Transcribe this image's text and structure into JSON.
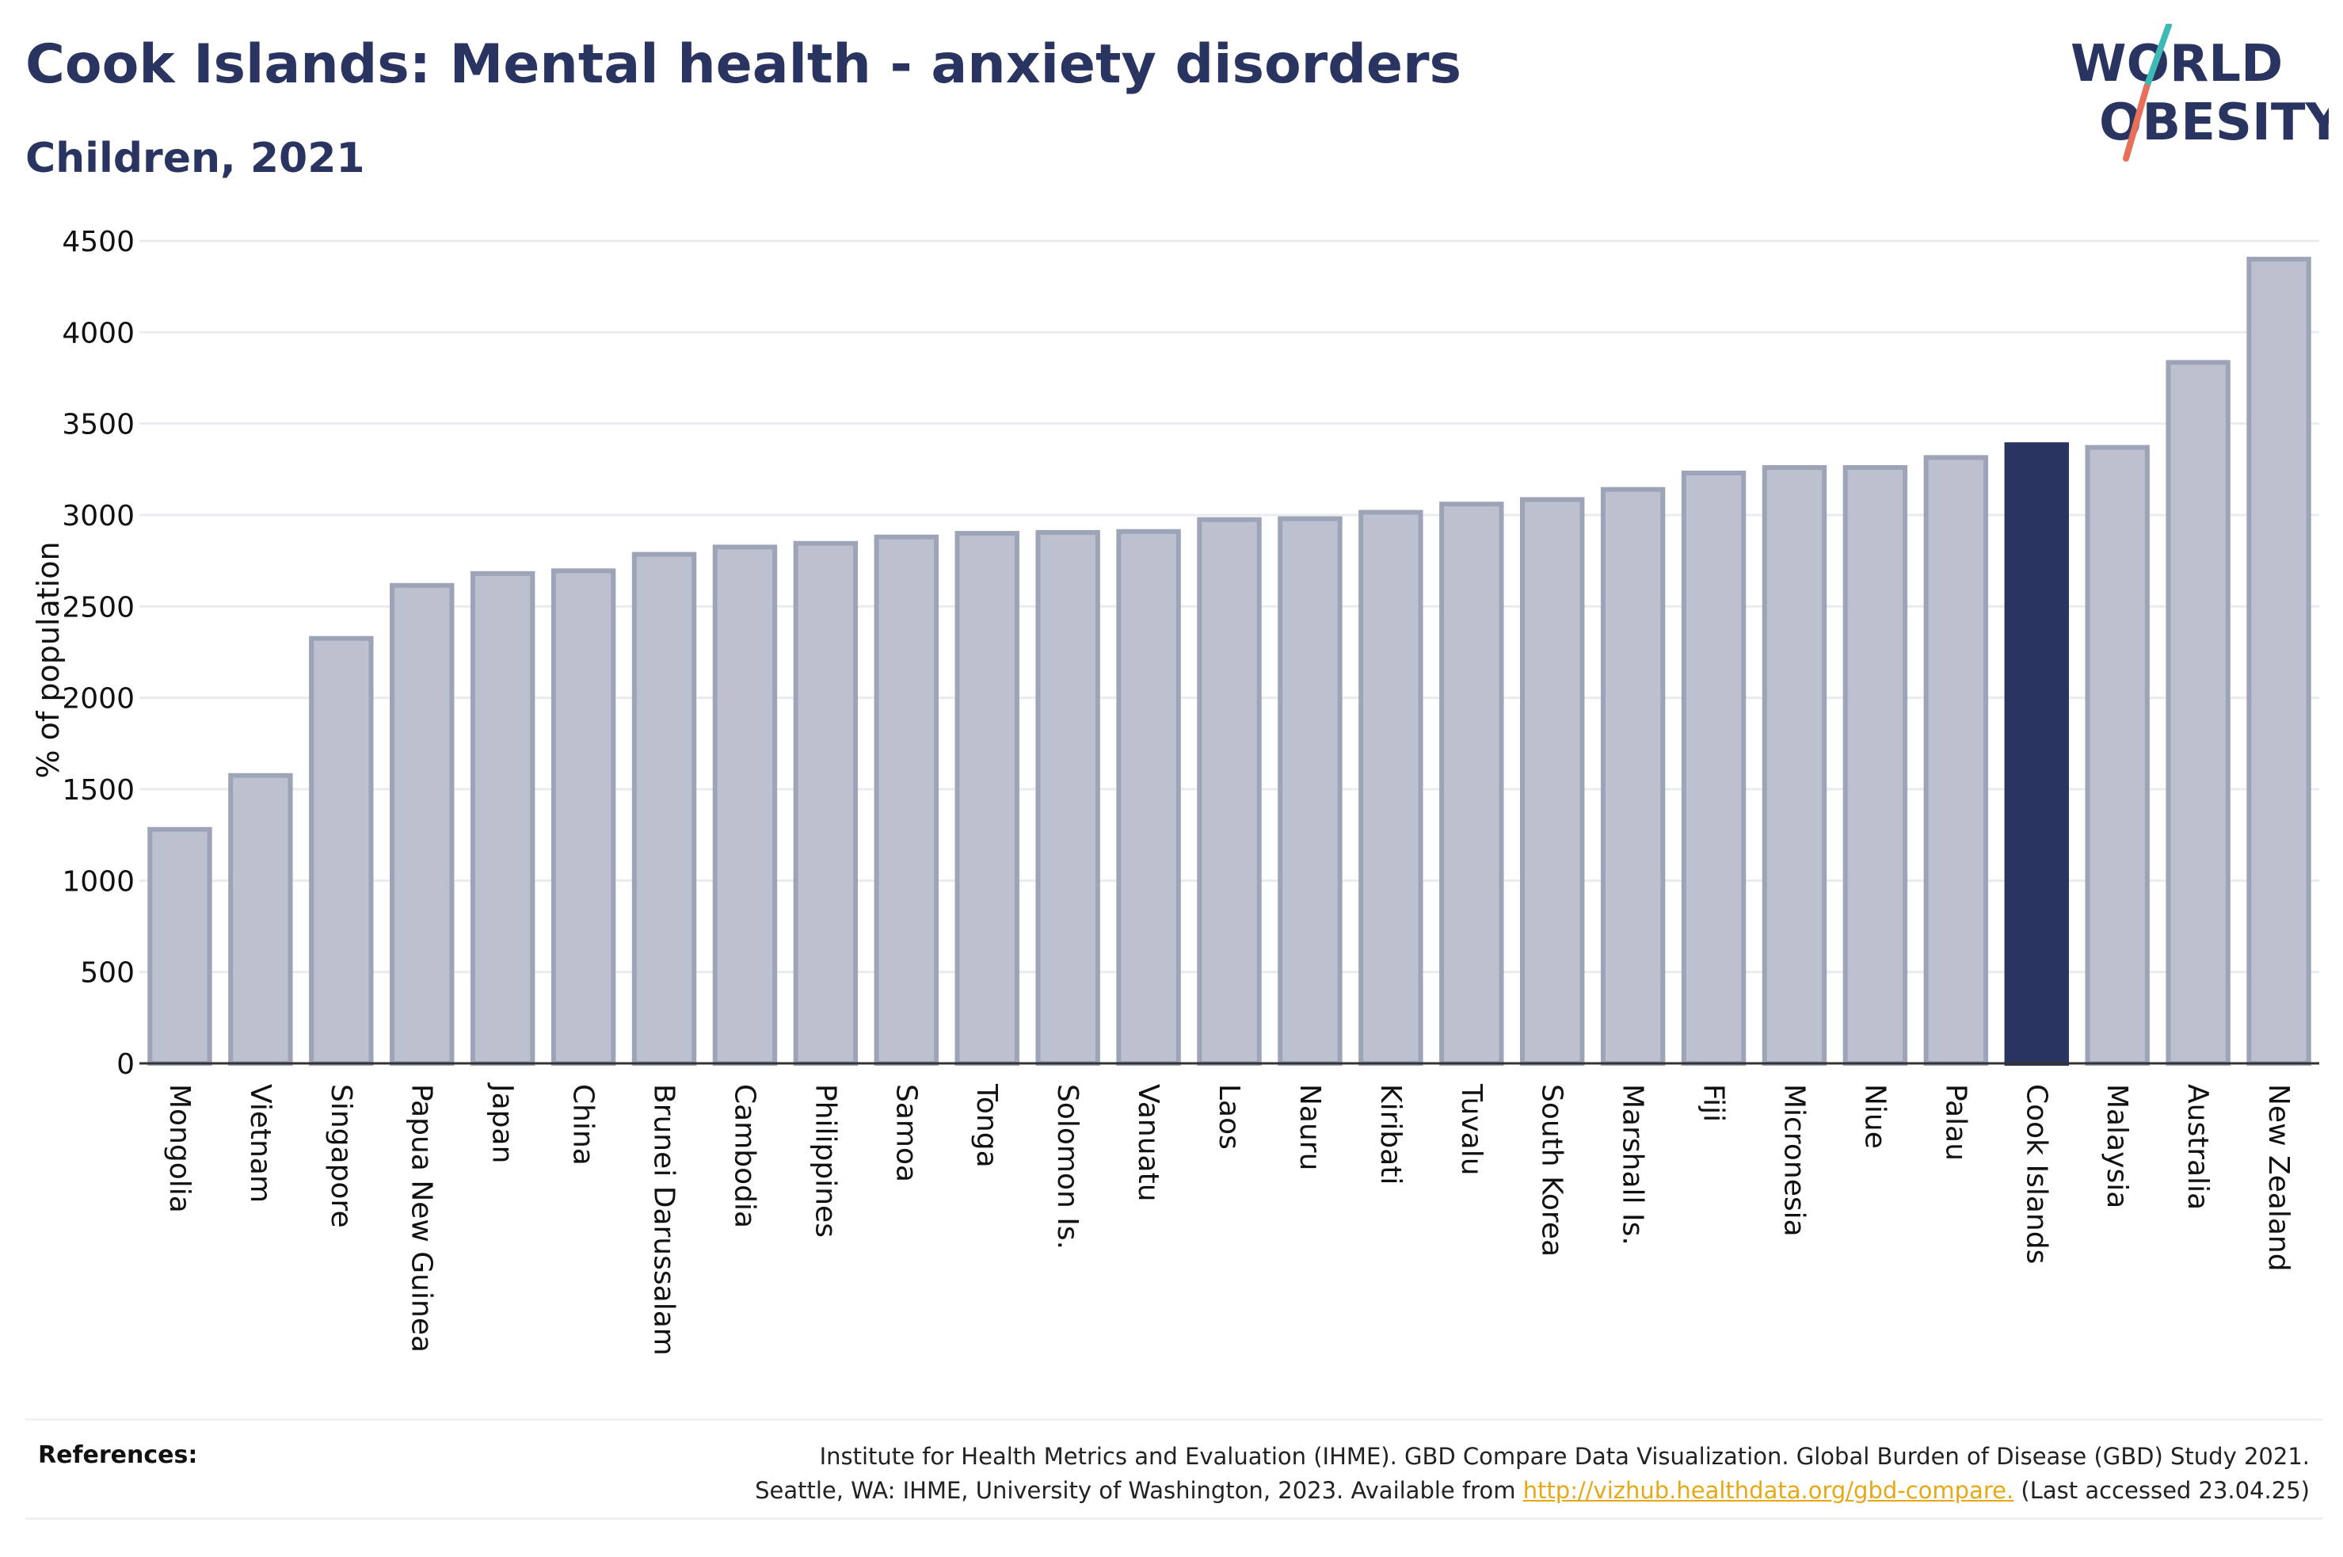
{
  "header": {
    "title": "Cook Islands: Mental health - anxiety disorders",
    "subtitle": "Children, 2021"
  },
  "logo": {
    "line1": "WORLD",
    "line2": "OBESITY",
    "slash_colors": [
      "#3fb9b5",
      "#e8705a"
    ]
  },
  "colors": {
    "bar_default": "#bcc0cf",
    "bar_default_outline": "#9ea4b8",
    "bar_highlight": "#2a3461",
    "text_dark": "#2a3461",
    "link": "#e6a817",
    "grid": "#e9ebef"
  },
  "chart_data": {
    "type": "bar",
    "ylabel": "% of population",
    "ylim": [
      0,
      4500
    ],
    "yticks": [
      0,
      500,
      1000,
      1500,
      2000,
      2500,
      3000,
      3500,
      4000,
      4500
    ],
    "grid": true,
    "highlight": "Cook Islands",
    "categories": [
      "Mongolia",
      "Vietnam",
      "Singapore",
      "Papua New Guinea",
      "Japan",
      "China",
      "Brunei Darussalam",
      "Cambodia",
      "Philippines",
      "Samoa",
      "Tonga",
      "Solomon Is.",
      "Vanuatu",
      "Laos",
      "Nauru",
      "Kiribati",
      "Tuvalu",
      "South Korea",
      "Marshall Is.",
      "Fiji",
      "Micronesia",
      "Niue",
      "Palau",
      "Cook Islands",
      "Malaysia",
      "Australia",
      "New Zealand"
    ],
    "values": [
      1280,
      1575,
      2325,
      2615,
      2680,
      2695,
      2785,
      2825,
      2845,
      2880,
      2900,
      2905,
      2910,
      2975,
      2980,
      3015,
      3060,
      3085,
      3140,
      3230,
      3260,
      3260,
      3315,
      3385,
      3370,
      3835,
      4400
    ]
  },
  "references": {
    "label": "References:",
    "line1": "Institute for Health Metrics and Evaluation (IHME). GBD Compare Data Visualization. Global Burden of Disease (GBD) Study 2021.",
    "line2_prefix": "Seattle, WA: IHME, University of Washington, 2023. Available from",
    "link": "http://vizhub.healthdata.org/gbd-compare.",
    "line2_suffix": "(Last accessed 23.04.25)"
  }
}
